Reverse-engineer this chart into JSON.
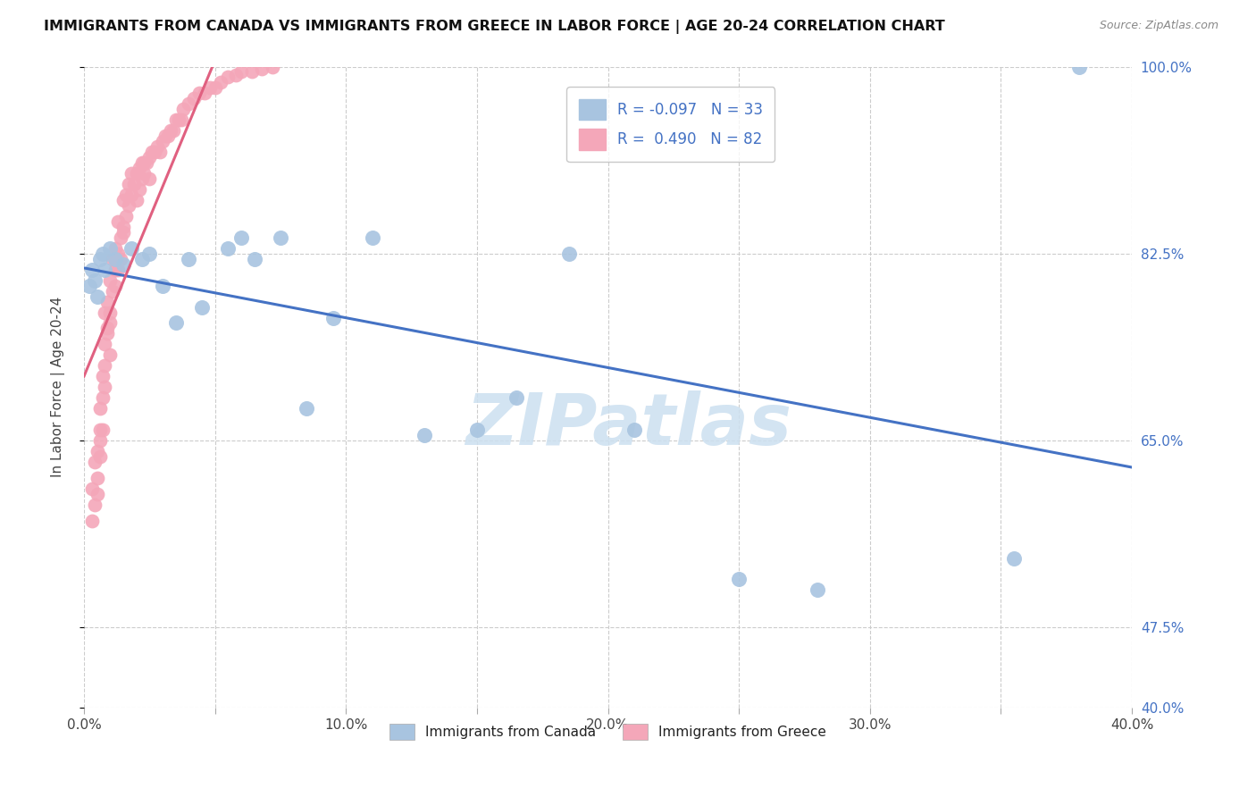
{
  "title": "IMMIGRANTS FROM CANADA VS IMMIGRANTS FROM GREECE IN LABOR FORCE | AGE 20-24 CORRELATION CHART",
  "source": "Source: ZipAtlas.com",
  "ylabel": "In Labor Force | Age 20-24",
  "xlim": [
    0.0,
    0.4
  ],
  "ylim": [
    0.4,
    1.0
  ],
  "xtick_labels": [
    "0.0%",
    "",
    "10.0%",
    "",
    "20.0%",
    "",
    "30.0%",
    "",
    "40.0%"
  ],
  "xtick_vals": [
    0.0,
    0.05,
    0.1,
    0.15,
    0.2,
    0.25,
    0.3,
    0.35,
    0.4
  ],
  "ytick_labels_right": [
    "100.0%",
    "82.5%",
    "65.0%",
    "47.5%",
    "40.0%"
  ],
  "ytick_vals": [
    1.0,
    0.825,
    0.65,
    0.475,
    0.4
  ],
  "R_canada": -0.097,
  "N_canada": 33,
  "R_greece": 0.49,
  "N_greece": 82,
  "color_canada": "#a8c4e0",
  "color_greece": "#f4a7b9",
  "trendline_canada_color": "#4472c4",
  "trendline_greece_color": "#e06080",
  "watermark": "ZIPatlas",
  "watermark_color": "#cce0f0",
  "canada_x": [
    0.002,
    0.003,
    0.004,
    0.005,
    0.006,
    0.007,
    0.008,
    0.01,
    0.012,
    0.015,
    0.018,
    0.022,
    0.025,
    0.03,
    0.035,
    0.04,
    0.045,
    0.055,
    0.06,
    0.065,
    0.075,
    0.085,
    0.095,
    0.11,
    0.13,
    0.15,
    0.165,
    0.185,
    0.21,
    0.25,
    0.28,
    0.355,
    0.38
  ],
  "canada_y": [
    0.795,
    0.81,
    0.8,
    0.785,
    0.82,
    0.825,
    0.81,
    0.83,
    0.82,
    0.815,
    0.83,
    0.82,
    0.825,
    0.795,
    0.76,
    0.82,
    0.775,
    0.83,
    0.84,
    0.82,
    0.84,
    0.68,
    0.765,
    0.84,
    0.655,
    0.66,
    0.69,
    0.825,
    0.66,
    0.52,
    0.51,
    0.54,
    1.0
  ],
  "greece_x": [
    0.003,
    0.003,
    0.004,
    0.004,
    0.005,
    0.005,
    0.005,
    0.006,
    0.006,
    0.006,
    0.006,
    0.007,
    0.007,
    0.007,
    0.008,
    0.008,
    0.008,
    0.008,
    0.009,
    0.009,
    0.009,
    0.01,
    0.01,
    0.01,
    0.01,
    0.011,
    0.011,
    0.012,
    0.012,
    0.012,
    0.013,
    0.013,
    0.013,
    0.014,
    0.014,
    0.015,
    0.015,
    0.015,
    0.016,
    0.016,
    0.017,
    0.017,
    0.018,
    0.018,
    0.019,
    0.02,
    0.02,
    0.021,
    0.021,
    0.022,
    0.022,
    0.023,
    0.023,
    0.024,
    0.025,
    0.025,
    0.026,
    0.027,
    0.028,
    0.029,
    0.03,
    0.031,
    0.032,
    0.033,
    0.034,
    0.035,
    0.036,
    0.037,
    0.038,
    0.04,
    0.042,
    0.044,
    0.046,
    0.048,
    0.05,
    0.052,
    0.055,
    0.058,
    0.06,
    0.064,
    0.068,
    0.072
  ],
  "greece_y": [
    0.575,
    0.605,
    0.59,
    0.63,
    0.615,
    0.64,
    0.6,
    0.66,
    0.635,
    0.68,
    0.65,
    0.69,
    0.66,
    0.71,
    0.72,
    0.7,
    0.74,
    0.77,
    0.755,
    0.78,
    0.75,
    0.73,
    0.76,
    0.77,
    0.8,
    0.79,
    0.82,
    0.81,
    0.795,
    0.83,
    0.825,
    0.81,
    0.855,
    0.84,
    0.82,
    0.845,
    0.85,
    0.875,
    0.86,
    0.88,
    0.87,
    0.89,
    0.88,
    0.9,
    0.89,
    0.9,
    0.875,
    0.905,
    0.885,
    0.91,
    0.895,
    0.91,
    0.9,
    0.91,
    0.915,
    0.895,
    0.92,
    0.92,
    0.925,
    0.92,
    0.93,
    0.935,
    0.935,
    0.94,
    0.94,
    0.95,
    0.95,
    0.95,
    0.96,
    0.965,
    0.97,
    0.975,
    0.975,
    0.98,
    0.98,
    0.985,
    0.99,
    0.992,
    0.995,
    0.995,
    0.998,
    1.0
  ]
}
